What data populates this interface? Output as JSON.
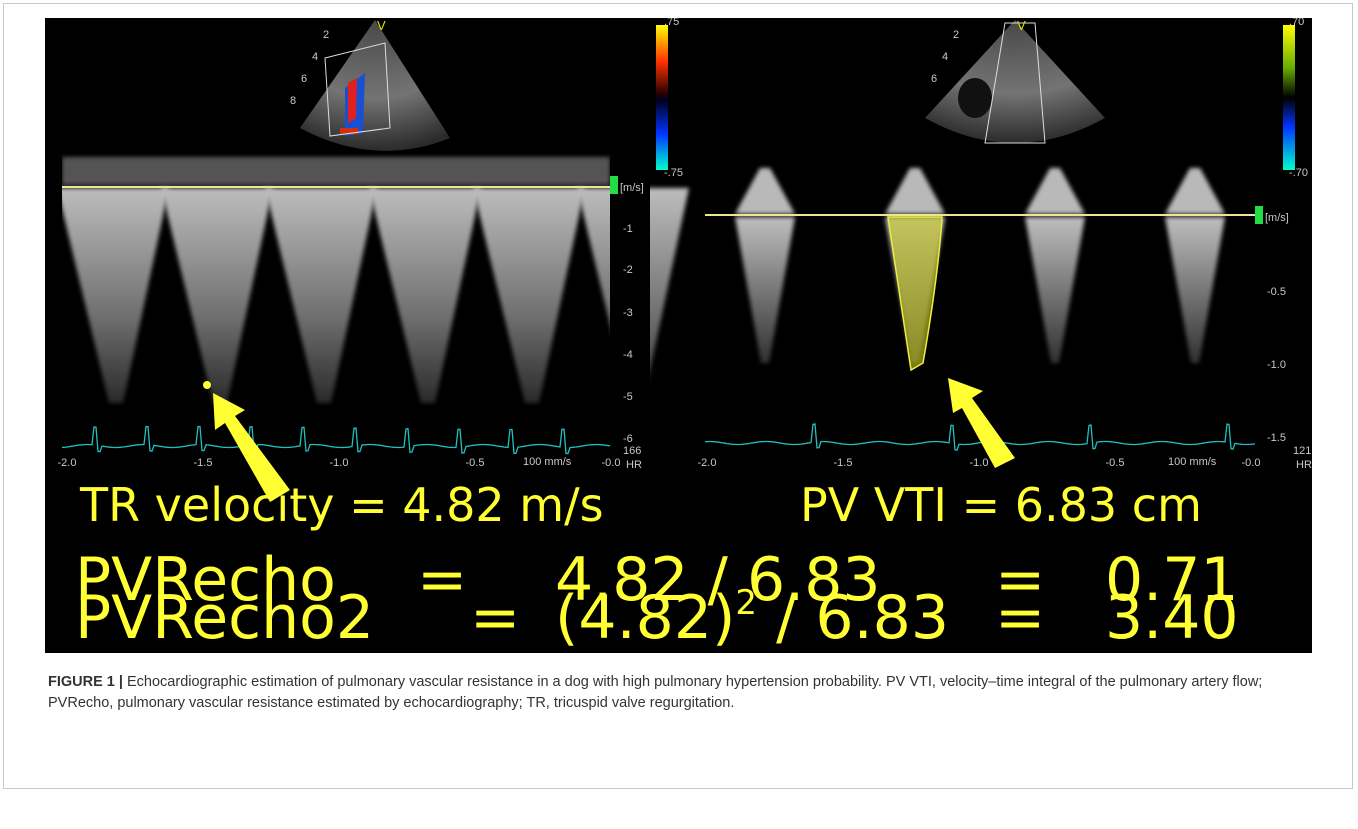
{
  "left_panel": {
    "scale_top": ".75",
    "scale_bottom": "-.75",
    "marker": "V",
    "depth_labels": [
      "2",
      "4",
      "6",
      "8"
    ],
    "unit": "[m/s]",
    "y_ticks": [
      "-1",
      "-2",
      "-3",
      "-4",
      "-5",
      "-6"
    ],
    "x_ticks": [
      "-2.0",
      "-1.5",
      "-1.0",
      "-0.5",
      "-0.0"
    ],
    "hr": "166",
    "hr_label": "HR",
    "sweep": "100 mm/s",
    "annotation": "TR velocity = 4.82 m/s"
  },
  "right_panel": {
    "scale_top": ".70",
    "scale_bottom": "-.70",
    "marker": "V",
    "depth_labels": [
      "2",
      "4",
      "6"
    ],
    "unit": "[m/s]",
    "y_ticks": [
      "-0.5",
      "-1.0",
      "-1.5"
    ],
    "x_ticks": [
      "-2.0",
      "-1.5",
      "-1.0",
      "-0.5",
      "-0.0"
    ],
    "hr": "121",
    "hr_label": "HR",
    "sweep": "100 mm/s",
    "annotation": "PV VTI = 6.83 cm"
  },
  "equations": [
    {
      "name": "PVRecho",
      "operator": "=",
      "expression": "4.82 / 6.83",
      "result": "0.71"
    },
    {
      "name": "PVRecho2",
      "operator": "=",
      "expression_base": "(4.82)",
      "exponent": "2",
      "expression_rest": " / 6.83",
      "result": "3.40"
    }
  ],
  "caption": {
    "label": "FIGURE 1 |",
    "text": "Echocardiographic estimation of pulmonary vascular resistance in a dog with high pulmonary hypertension probability. PV VTI, velocity–time integral of the pulmonary artery flow; PVRecho, pulmonary vascular resistance estimated by echocardiography; TR, tricuspid valve regurgitation."
  }
}
